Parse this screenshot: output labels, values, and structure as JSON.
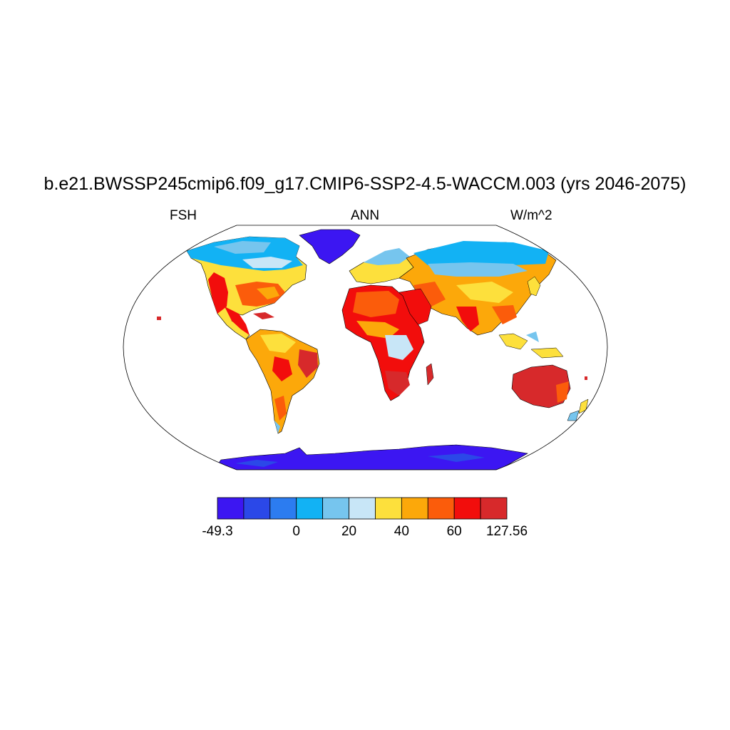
{
  "title": "b.e21.BWSSP245cmip6.f09_g17.CMIP6-SSP2-4.5-WACCM.003 (yrs 2046-2075)",
  "subtitle_left": "FSH",
  "subtitle_center": "ANN",
  "subtitle_right": "W/m^2",
  "colorbar": {
    "colors": [
      "#3c16f2",
      "#2b48e8",
      "#2c7cf0",
      "#12b2f4",
      "#76c5ee",
      "#c8e6f7",
      "#fde03c",
      "#fca80a",
      "#fb5c0b",
      "#f20d0c",
      "#d7292b"
    ],
    "labels": [
      "-49.3",
      "0",
      "20",
      "40",
      "60",
      "127.56"
    ],
    "label_boundary_index": [
      0,
      3,
      5,
      7,
      9,
      11
    ]
  },
  "map": {
    "projection": "Robinson",
    "ocean_color": "#ffffff",
    "outline_color": "#000000"
  }
}
